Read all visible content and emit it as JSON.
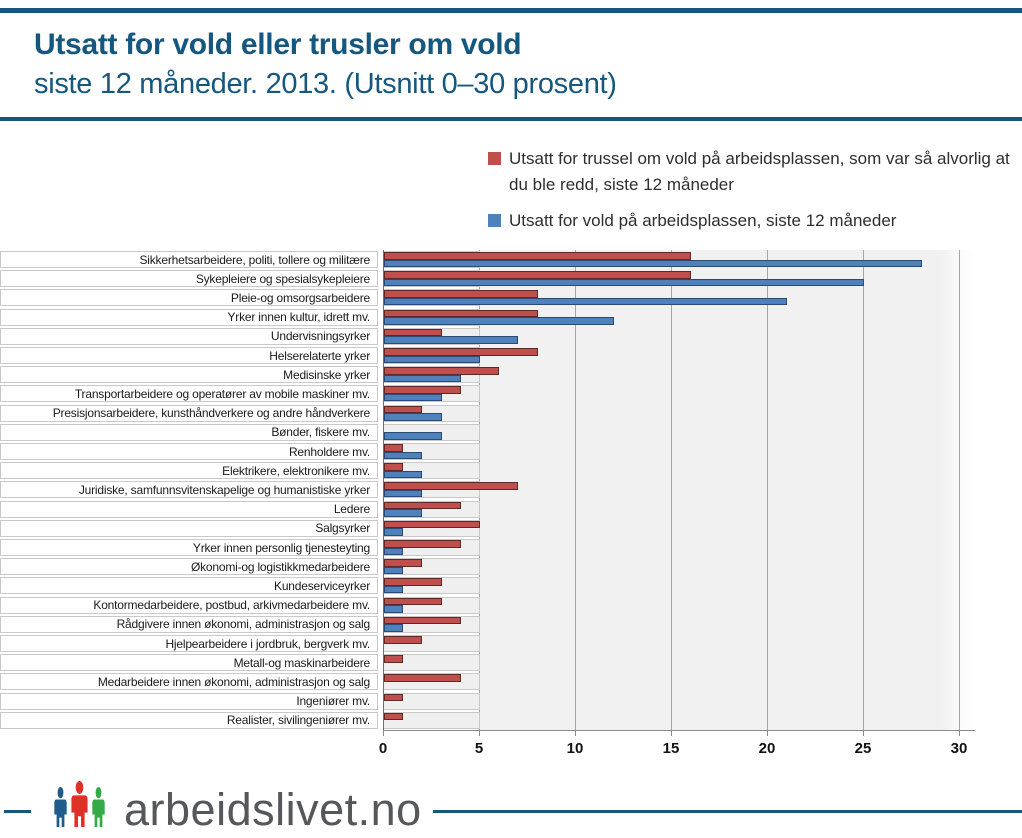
{
  "header": {
    "title": "Utsatt for vold eller trusler om vold",
    "subtitle": "siste 12 måneder. 2013. (Utsnitt 0–30 prosent)"
  },
  "legend": [
    {
      "label": "Utsatt for trussel om vold på arbeidsplassen, som var så alvorlig at du ble redd, siste 12 måneder",
      "color": "#bf4f4c"
    },
    {
      "label": "Utsatt for vold på arbeidsplassen, siste 12 måneder",
      "color": "#4f81bd"
    }
  ],
  "chart_data": {
    "type": "bar",
    "orientation": "horizontal",
    "title": "Utsatt for vold eller trusler om vold siste 12 måneder. 2013. (Utsnitt 0–30 prosent)",
    "xlabel": "",
    "ylabel": "",
    "xlim": [
      0,
      30
    ],
    "x_ticks": [
      0,
      5,
      10,
      15,
      20,
      25,
      30
    ],
    "unit": "prosent",
    "grid": true,
    "legend_position": "top-right",
    "categories": [
      "Sikkerhetsarbeidere, politi, tollere og militære",
      "Sykepleiere og spesialsykepleiere",
      "Pleie-og omsorgsarbeidere",
      "Yrker innen kultur, idrett mv.",
      "Undervisningsyrker",
      "Helserelaterte yrker",
      "Medisinske yrker",
      "Transportarbeidere og operatører av mobile maskiner mv.",
      "Presisjonsarbeidere, kunsthåndverkere og andre håndverkere",
      "Bønder, fiskere mv.",
      "Renholdere mv.",
      "Elektrikere, elektronikere mv.",
      "Juridiske, samfunnsvitenskapelige og humanistiske yrker",
      "Ledere",
      "Salgsyrker",
      "Yrker innen personlig tjenesteyting",
      "Økonomi-og logistikkmedarbeidere",
      "Kundeserviceyrker",
      "Kontormedarbeidere, postbud, arkivmedarbeidere mv.",
      "Rådgivere innen økonomi, administrasjon og salg",
      "Hjelpearbeidere i jordbruk, bergverk mv.",
      "Metall-og maskinarbeidere",
      "Medarbeidere innen økonomi, administrasjon og salg",
      "Ingeniører mv.",
      "Realister, sivilingeniører mv."
    ],
    "series": [
      {
        "name": "Utsatt for trussel om vold på arbeidsplassen, som var så alvorlig at du ble redd, siste 12 måneder",
        "color": "#bf4f4c",
        "values": [
          16,
          16,
          8,
          8,
          3,
          8,
          6,
          4,
          2,
          0,
          1,
          1,
          7,
          4,
          5,
          4,
          2,
          3,
          3,
          4,
          2,
          1,
          4,
          1,
          1
        ]
      },
      {
        "name": "Utsatt for vold på arbeidsplassen, siste 12 måneder",
        "color": "#4f81bd",
        "values": [
          28,
          25,
          21,
          12,
          7,
          5,
          4,
          3,
          3,
          3,
          2,
          2,
          2,
          2,
          1,
          1,
          1,
          1,
          1,
          1,
          0,
          0,
          0,
          0,
          0
        ]
      }
    ]
  },
  "footer": {
    "site": "arbeidslivet.no"
  },
  "colors": {
    "brand_blue": "#15577e",
    "bar_red": "#bf4f4c",
    "bar_blue": "#4f81bd",
    "plot_background": "#f1f1f1",
    "gridline": "#a5a5a5",
    "logo_text_gray": "#55575a",
    "logo_person_blue": "#1f5c8b",
    "logo_person_red": "#e03127",
    "logo_person_green": "#35aa47"
  }
}
